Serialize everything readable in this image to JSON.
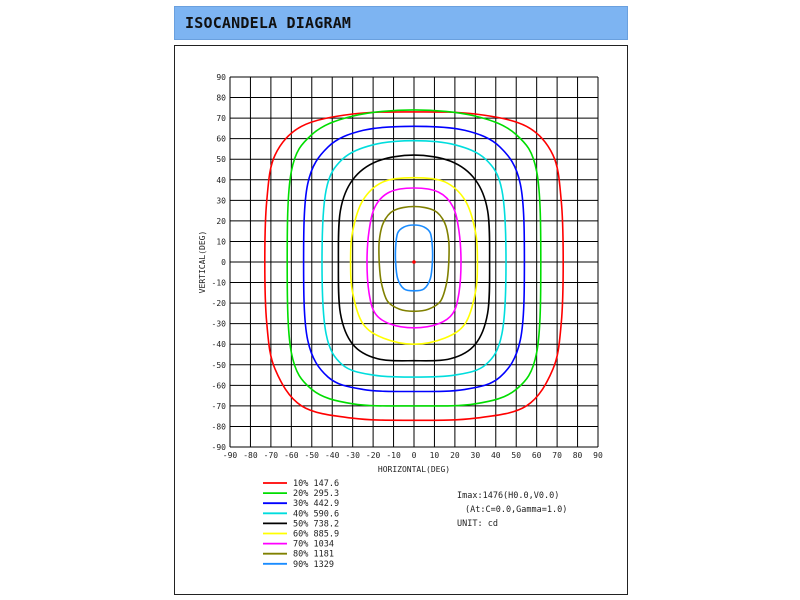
{
  "header": {
    "title": "ISOCANDELA DIAGRAM"
  },
  "info": {
    "imax": "Imax:1476(H0.0,V0.0)",
    "at": "(At:C=0.0,Gamma=1.0)",
    "unit": "UNIT: cd"
  },
  "chart_data": {
    "type": "line",
    "title": "",
    "xlabel": "HORIZONTAL(DEG)",
    "ylabel": "VERTICAL(DEG)",
    "xlim": [
      -90,
      90
    ],
    "ylim": [
      -90,
      90
    ],
    "grid": true,
    "xticks": [
      -90,
      -80,
      -70,
      -60,
      -50,
      -40,
      -30,
      -20,
      -10,
      0,
      10,
      20,
      30,
      40,
      50,
      60,
      70,
      80,
      90
    ],
    "yticks": [
      90,
      80,
      70,
      60,
      50,
      40,
      30,
      20,
      10,
      0,
      -10,
      -20,
      -30,
      -40,
      -50,
      -60,
      -70,
      -80,
      -90
    ],
    "tick_labels_x": [
      "-90",
      "-80",
      "-70",
      "-60",
      "-50",
      "-40",
      "-30",
      "-20",
      "-10",
      "0",
      "10",
      "20",
      "30",
      "40",
      "50",
      "60",
      "70",
      "80",
      "90"
    ],
    "tick_labels_y": [
      "90",
      "80",
      "70",
      "60",
      "50",
      "40",
      "30",
      "20",
      "10",
      "0",
      "-10",
      "-20",
      "-30",
      "-40",
      "-50",
      "-60",
      "-70",
      "-80",
      "-90"
    ],
    "legend_position": "bottom-left",
    "max_point": {
      "x": 0,
      "y": 0,
      "color": "#ff0000"
    },
    "series": [
      {
        "name": "10% 147.6",
        "color": "#ff0000",
        "points": [
          [
            0,
            73
          ],
          [
            30,
            72
          ],
          [
            55,
            66
          ],
          [
            68,
            52
          ],
          [
            72,
            30
          ],
          [
            73,
            0
          ],
          [
            72,
            -30
          ],
          [
            68,
            -52
          ],
          [
            55,
            -70
          ],
          [
            30,
            -76
          ],
          [
            0,
            -77
          ],
          [
            -30,
            -76
          ],
          [
            -55,
            -70
          ],
          [
            -68,
            -52
          ],
          [
            -72,
            -30
          ],
          [
            -73,
            0
          ],
          [
            -72,
            30
          ],
          [
            -68,
            52
          ],
          [
            -55,
            66
          ],
          [
            -30,
            72
          ]
        ]
      },
      {
        "name": "20% 295.3",
        "color": "#00dd00",
        "points": [
          [
            0,
            74
          ],
          [
            30,
            71
          ],
          [
            50,
            62
          ],
          [
            60,
            44
          ],
          [
            62,
            0
          ],
          [
            60,
            -44
          ],
          [
            50,
            -62
          ],
          [
            30,
            -69
          ],
          [
            0,
            -70
          ],
          [
            -30,
            -69
          ],
          [
            -50,
            -62
          ],
          [
            -60,
            -44
          ],
          [
            -62,
            0
          ],
          [
            -60,
            44
          ],
          [
            -50,
            62
          ],
          [
            -30,
            71
          ]
        ]
      },
      {
        "name": "30% 442.9",
        "color": "#0000ff",
        "points": [
          [
            0,
            66
          ],
          [
            25,
            64
          ],
          [
            42,
            56
          ],
          [
            52,
            38
          ],
          [
            54,
            0
          ],
          [
            52,
            -38
          ],
          [
            42,
            -56
          ],
          [
            25,
            -62
          ],
          [
            0,
            -63
          ],
          [
            -25,
            -62
          ],
          [
            -42,
            -56
          ],
          [
            -52,
            -38
          ],
          [
            -54,
            0
          ],
          [
            -52,
            38
          ],
          [
            -42,
            56
          ],
          [
            -25,
            64
          ]
        ]
      },
      {
        "name": "40% 590.6",
        "color": "#00dddd",
        "points": [
          [
            0,
            59
          ],
          [
            20,
            57
          ],
          [
            35,
            50
          ],
          [
            43,
            35
          ],
          [
            45,
            0
          ],
          [
            43,
            -35
          ],
          [
            35,
            -50
          ],
          [
            20,
            -55
          ],
          [
            0,
            -56
          ],
          [
            -20,
            -55
          ],
          [
            -35,
            -50
          ],
          [
            -43,
            -35
          ],
          [
            -45,
            0
          ],
          [
            -43,
            35
          ],
          [
            -35,
            50
          ],
          [
            -20,
            57
          ]
        ]
      },
      {
        "name": "50% 738.2",
        "color": "#000000",
        "points": [
          [
            0,
            52
          ],
          [
            18,
            49
          ],
          [
            30,
            40
          ],
          [
            36,
            25
          ],
          [
            37,
            0
          ],
          [
            36,
            -25
          ],
          [
            30,
            -40
          ],
          [
            18,
            -47
          ],
          [
            0,
            -48
          ],
          [
            -18,
            -47
          ],
          [
            -30,
            -40
          ],
          [
            -36,
            -25
          ],
          [
            -37,
            0
          ],
          [
            -36,
            25
          ],
          [
            -30,
            40
          ],
          [
            -18,
            49
          ]
        ]
      },
      {
        "name": "60% 885.9",
        "color": "#ffff00",
        "points": [
          [
            0,
            41
          ],
          [
            15,
            39
          ],
          [
            25,
            30
          ],
          [
            30,
            15
          ],
          [
            31,
            0
          ],
          [
            30,
            -15
          ],
          [
            25,
            -30
          ],
          [
            15,
            -37
          ],
          [
            0,
            -40
          ],
          [
            -15,
            -37
          ],
          [
            -25,
            -30
          ],
          [
            -30,
            -15
          ],
          [
            -31,
            0
          ],
          [
            -30,
            15
          ],
          [
            -25,
            30
          ],
          [
            -15,
            39
          ]
        ]
      },
      {
        "name": "70% 1034",
        "color": "#ff00ff",
        "points": [
          [
            0,
            36
          ],
          [
            12,
            34
          ],
          [
            19,
            27
          ],
          [
            22,
            15
          ],
          [
            23,
            0
          ],
          [
            22,
            -15
          ],
          [
            19,
            -25
          ],
          [
            12,
            -30
          ],
          [
            0,
            -32
          ],
          [
            -12,
            -30
          ],
          [
            -19,
            -25
          ],
          [
            -22,
            -15
          ],
          [
            -23,
            0
          ],
          [
            -22,
            15
          ],
          [
            -19,
            27
          ],
          [
            -12,
            34
          ]
        ]
      },
      {
        "name": "80% 1181",
        "color": "#808000",
        "points": [
          [
            0,
            27
          ],
          [
            10,
            25
          ],
          [
            15,
            19
          ],
          [
            17,
            10
          ],
          [
            17,
            0
          ],
          [
            16,
            -10
          ],
          [
            13,
            -19
          ],
          [
            7,
            -23
          ],
          [
            0,
            -24
          ],
          [
            -7,
            -23
          ],
          [
            -13,
            -19
          ],
          [
            -16,
            -10
          ],
          [
            -17,
            0
          ],
          [
            -17,
            10
          ],
          [
            -15,
            19
          ],
          [
            -10,
            25
          ]
        ]
      },
      {
        "name": "90% 1329",
        "color": "#1a8cff",
        "points": [
          [
            0,
            18
          ],
          [
            5,
            17
          ],
          [
            8,
            14
          ],
          [
            9,
            7
          ],
          [
            9,
            0
          ],
          [
            8,
            -8
          ],
          [
            5,
            -13
          ],
          [
            0,
            -14
          ],
          [
            -5,
            -13
          ],
          [
            -8,
            -8
          ],
          [
            -9,
            0
          ],
          [
            -9,
            7
          ],
          [
            -8,
            14
          ],
          [
            -5,
            17
          ]
        ]
      }
    ]
  }
}
